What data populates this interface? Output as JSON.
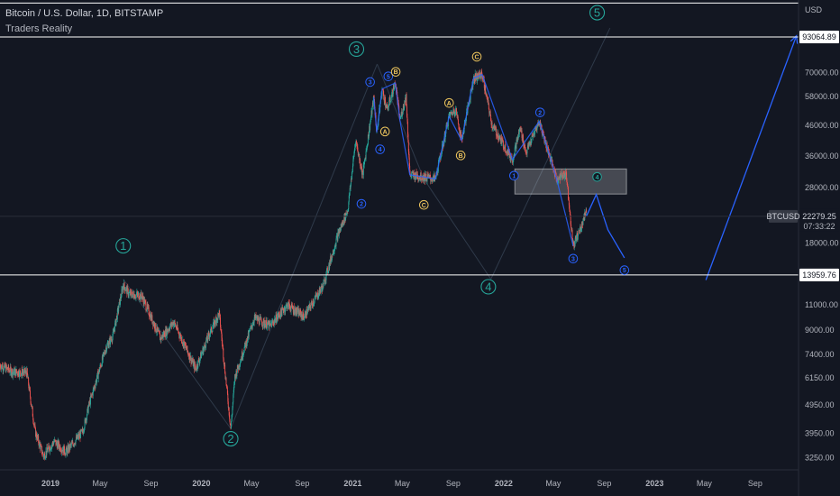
{
  "header": {
    "title": "Bitcoin / U.S. Dollar, 1D, BITSTAMP",
    "indicator": "Traders Reality"
  },
  "chart_data": {
    "type": "candlestick",
    "symbol": "BTCUSD",
    "currency": "USD",
    "last_price": "22279.25",
    "countdown": "07:33:22",
    "y_scale": "log",
    "ylim": [
      2950,
      125000
    ],
    "xlim": [
      "2018-09-01",
      "2023-12-15"
    ],
    "y_ticks": [
      "70000.00",
      "58000.00",
      "46000.00",
      "36000.00",
      "28000.00",
      "18000.00",
      "11000.00",
      "9000.00",
      "7400.00",
      "6150.00",
      "4950.00",
      "3950.00",
      "3250.00"
    ],
    "x_ticks": [
      {
        "label": "2019",
        "date": "2019-01-01",
        "bold": true
      },
      {
        "label": "May",
        "date": "2019-05-01"
      },
      {
        "label": "Sep",
        "date": "2019-09-01"
      },
      {
        "label": "2020",
        "date": "2020-01-01",
        "bold": true
      },
      {
        "label": "May",
        "date": "2020-05-01"
      },
      {
        "label": "Sep",
        "date": "2020-09-01"
      },
      {
        "label": "2021",
        "date": "2021-01-01",
        "bold": true
      },
      {
        "label": "May",
        "date": "2021-05-01"
      },
      {
        "label": "Sep",
        "date": "2021-09-01"
      },
      {
        "label": "2022",
        "date": "2022-01-01",
        "bold": true
      },
      {
        "label": "May",
        "date": "2022-05-01"
      },
      {
        "label": "Sep",
        "date": "2022-09-01"
      },
      {
        "label": "2023",
        "date": "2023-01-01",
        "bold": true
      },
      {
        "label": "May",
        "date": "2023-05-01"
      },
      {
        "label": "Sep",
        "date": "2023-09-01"
      }
    ],
    "horizontal_levels": [
      {
        "price": 93064.89,
        "label": "93064.89"
      },
      {
        "price": 13959.76,
        "label": "13959.76"
      }
    ],
    "top_boundary_price": 122000,
    "price_path": [
      [
        "2018-09-01",
        6800
      ],
      [
        "2018-10-01",
        6450
      ],
      [
        "2018-11-05",
        6400
      ],
      [
        "2018-11-25",
        4000
      ],
      [
        "2018-12-15",
        3300
      ],
      [
        "2019-01-10",
        3700
      ],
      [
        "2019-02-07",
        3400
      ],
      [
        "2019-03-20",
        4000
      ],
      [
        "2019-04-05",
        5000
      ],
      [
        "2019-05-15",
        7800
      ],
      [
        "2019-06-01",
        8600
      ],
      [
        "2019-06-26",
        12900
      ],
      [
        "2019-07-10",
        12000
      ],
      [
        "2019-08-10",
        11800
      ],
      [
        "2019-09-24",
        8400
      ],
      [
        "2019-10-26",
        9600
      ],
      [
        "2019-12-18",
        6600
      ],
      [
        "2020-01-20",
        8700
      ],
      [
        "2020-02-13",
        10300
      ],
      [
        "2020-03-12",
        4100
      ],
      [
        "2020-03-22",
        6200
      ],
      [
        "2020-05-08",
        9900
      ],
      [
        "2020-06-15",
        9300
      ],
      [
        "2020-07-27",
        11000
      ],
      [
        "2020-09-05",
        10000
      ],
      [
        "2020-10-21",
        12800
      ],
      [
        "2020-11-25",
        19000
      ],
      [
        "2020-12-20",
        23500
      ],
      [
        "2021-01-08",
        41000
      ],
      [
        "2021-01-25",
        31000
      ],
      [
        "2021-02-21",
        57500
      ],
      [
        "2021-02-28",
        43500
      ],
      [
        "2021-03-13",
        61500
      ],
      [
        "2021-03-25",
        52000
      ],
      [
        "2021-04-14",
        64500
      ],
      [
        "2021-04-25",
        48000
      ],
      [
        "2021-05-10",
        58000
      ],
      [
        "2021-05-19",
        31000
      ],
      [
        "2021-06-22",
        30500
      ],
      [
        "2021-07-20",
        30000
      ],
      [
        "2021-08-22",
        49500
      ],
      [
        "2021-09-07",
        52500
      ],
      [
        "2021-09-21",
        40800
      ],
      [
        "2021-10-20",
        67000
      ],
      [
        "2021-11-10",
        69000
      ],
      [
        "2021-12-04",
        46000
      ],
      [
        "2022-01-22",
        35000
      ],
      [
        "2022-02-10",
        45000
      ],
      [
        "2022-02-24",
        37000
      ],
      [
        "2022-03-28",
        47500
      ],
      [
        "2022-05-09",
        30000
      ],
      [
        "2022-06-01",
        31500
      ],
      [
        "2022-06-18",
        17600
      ],
      [
        "2022-07-07",
        20500
      ],
      [
        "2022-07-20",
        23500
      ]
    ],
    "projection_line": [
      [
        "2022-07-20",
        22279
      ],
      [
        "2022-08-13",
        26500
      ],
      [
        "2022-09-10",
        20000
      ],
      [
        "2022-10-20",
        16000
      ]
    ],
    "projection_line_2": [
      [
        "2023-05-05",
        13400
      ],
      [
        "2023-12-10",
        94000
      ]
    ],
    "wave_path": [
      [
        "2021-02-21",
        57500
      ],
      [
        "2021-02-28",
        43500
      ],
      [
        "2021-03-13",
        61500
      ],
      [
        "2021-04-14",
        64500
      ],
      [
        "2021-04-25",
        48000
      ],
      [
        "2021-05-19",
        31000
      ],
      [
        "2021-06-22",
        30500
      ],
      [
        "2021-07-20",
        30000
      ],
      [
        "2021-08-22",
        49500
      ],
      [
        "2021-09-21",
        40800
      ],
      [
        "2021-10-20",
        67000
      ],
      [
        "2021-11-10",
        69000
      ],
      [
        "2022-01-22",
        35000
      ],
      [
        "2022-03-28",
        47500
      ],
      [
        "2022-05-09",
        30000
      ],
      [
        "2022-06-18",
        17600
      ]
    ],
    "guide_lines": [
      [
        [
          "2019-06-26",
          13500
        ],
        [
          "2020-03-12",
          4100
        ]
      ],
      [
        [
          "2020-03-12",
          4100
        ],
        [
          "2021-03-01",
          75000
        ]
      ],
      [
        [
          "2021-03-01",
          75000
        ],
        [
          "2021-06-22",
          30000
        ]
      ],
      [
        [
          "2021-06-22",
          30000
        ],
        [
          "2021-12-01",
          13500
        ]
      ],
      [
        [
          "2021-12-01",
          13500
        ],
        [
          "2022-09-15",
          100000
        ]
      ]
    ],
    "zone": {
      "x0": "2022-01-28",
      "x1": "2022-10-25",
      "y0": 26600,
      "y1": 32500
    },
    "wave_labels": [
      {
        "label": "1",
        "date": "2019-06-26",
        "price": 17600,
        "color": "#26a69a",
        "size": "lg"
      },
      {
        "label": "2",
        "date": "2020-03-12",
        "price": 3780,
        "color": "#26a69a",
        "size": "lg"
      },
      {
        "label": "3",
        "date": "2021-01-10",
        "price": 84500,
        "color": "#26a69a",
        "size": "lg"
      },
      {
        "label": "4",
        "date": "2021-11-25",
        "price": 12700,
        "color": "#26a69a",
        "size": "lg"
      },
      {
        "label": "5",
        "date": "2022-08-15",
        "price": 113000,
        "color": "#26a69a",
        "size": "lg"
      },
      {
        "label": "2",
        "date": "2021-01-22",
        "price": 24600,
        "color": "#2962ff",
        "size": "sm"
      },
      {
        "label": "3",
        "date": "2021-02-12",
        "price": 65000,
        "color": "#2962ff",
        "size": "sm"
      },
      {
        "label": "4",
        "date": "2021-03-08",
        "price": 38000,
        "color": "#2962ff",
        "size": "sm"
      },
      {
        "label": "5",
        "date": "2021-03-28",
        "price": 68000,
        "color": "#2962ff",
        "size": "sm"
      },
      {
        "label": "A",
        "date": "2021-03-20",
        "price": 43800,
        "color": "#f0c75e",
        "size": "sm"
      },
      {
        "label": "B",
        "date": "2021-04-15",
        "price": 70500,
        "color": "#f0c75e",
        "size": "sm"
      },
      {
        "label": "C",
        "date": "2021-06-22",
        "price": 24400,
        "color": "#f0c75e",
        "size": "sm"
      },
      {
        "label": "A",
        "date": "2021-08-22",
        "price": 55000,
        "color": "#f0c75e",
        "size": "sm"
      },
      {
        "label": "B",
        "date": "2021-09-19",
        "price": 36200,
        "color": "#f0c75e",
        "size": "sm"
      },
      {
        "label": "C",
        "date": "2021-10-28",
        "price": 79500,
        "color": "#f0c75e",
        "size": "sm"
      },
      {
        "label": "1",
        "date": "2022-01-26",
        "price": 30800,
        "color": "#2962ff",
        "size": "sm"
      },
      {
        "label": "2",
        "date": "2022-03-30",
        "price": 51000,
        "color": "#2962ff",
        "size": "sm"
      },
      {
        "label": "3",
        "date": "2022-06-18",
        "price": 15900,
        "color": "#2962ff",
        "size": "sm"
      },
      {
        "label": "4",
        "date": "2022-08-15",
        "price": 30500,
        "color": "#26a69a",
        "size": "sm"
      },
      {
        "label": "5",
        "date": "2022-10-20",
        "price": 14500,
        "color": "#2962ff",
        "size": "sm"
      }
    ],
    "colors": {
      "background": "#131722",
      "up": "#26a69a",
      "down": "#ef5350",
      "wave_line": "#2962ff",
      "level_line": "#ffffff",
      "text": "#b2b5be"
    }
  }
}
